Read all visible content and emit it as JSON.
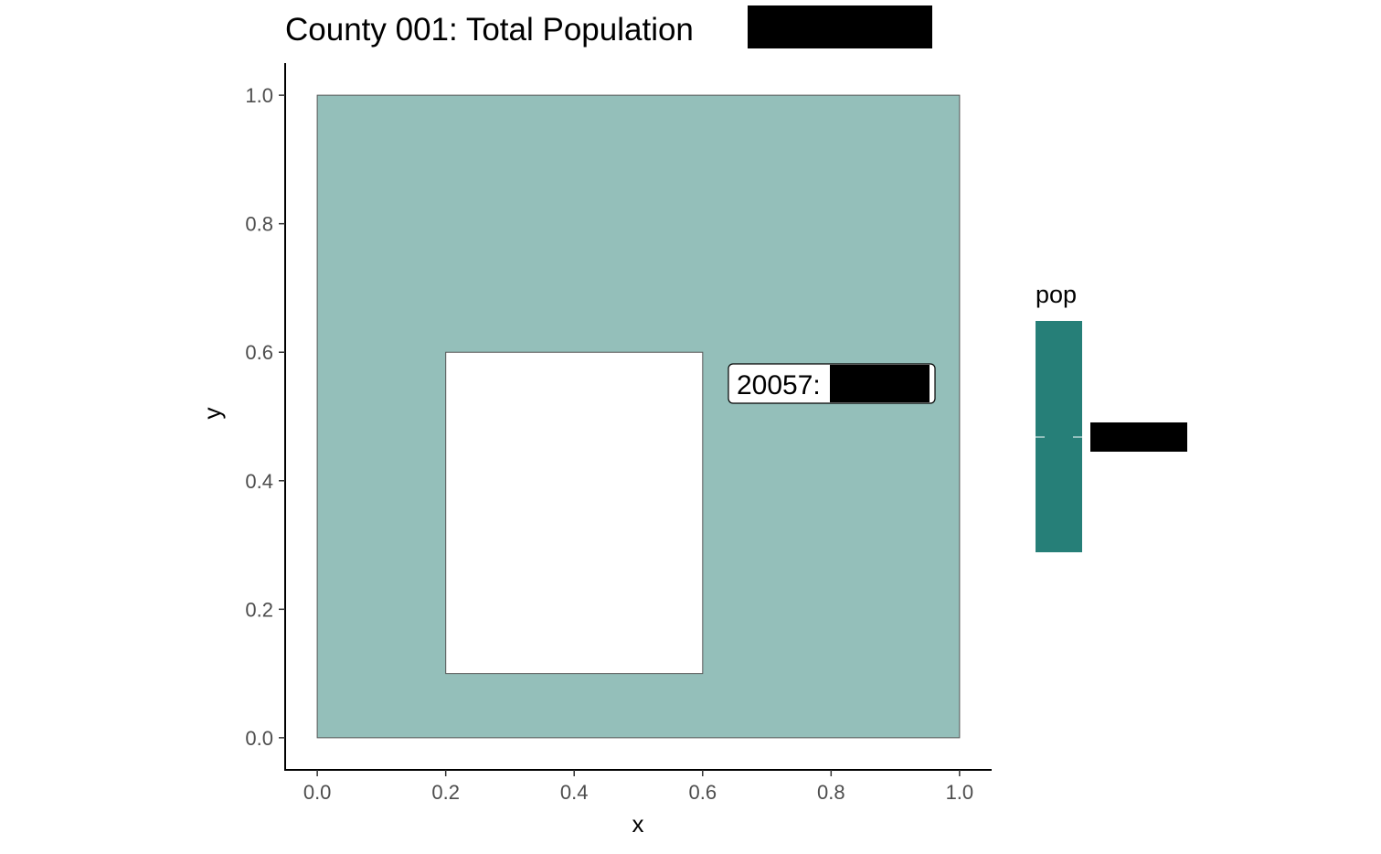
{
  "chart_data": {
    "type": "map",
    "title": "County 001: Total Population",
    "xlabel": "x",
    "ylabel": "y",
    "xlim": [
      -0.05,
      1.05
    ],
    "ylim": [
      -0.05,
      1.05
    ],
    "x_ticks": [
      0.0,
      0.2,
      0.4,
      0.6,
      0.8,
      1.0
    ],
    "y_ticks": [
      0.0,
      0.2,
      0.4,
      0.6,
      0.8,
      1.0
    ],
    "x_tick_labels": [
      "0.0",
      "0.2",
      "0.4",
      "0.6",
      "0.8",
      "1.0"
    ],
    "y_tick_labels": [
      "0.0",
      "0.2",
      "0.4",
      "0.6",
      "0.8",
      "1.0"
    ],
    "grid": false,
    "polygon": {
      "outer": [
        [
          0,
          0
        ],
        [
          1,
          0
        ],
        [
          1,
          1
        ],
        [
          0,
          1
        ]
      ],
      "hole": [
        [
          0.2,
          0.1
        ],
        [
          0.6,
          0.1
        ],
        [
          0.6,
          0.6
        ],
        [
          0.2,
          0.6
        ]
      ],
      "fill": "#94bfba",
      "stroke": "#555555"
    },
    "label": {
      "text": "20057:",
      "x": 0.8,
      "y": 0.55
    },
    "legend": {
      "title": "pop",
      "position": "right",
      "color": "#267f78"
    },
    "redacted_color": "#000000"
  }
}
